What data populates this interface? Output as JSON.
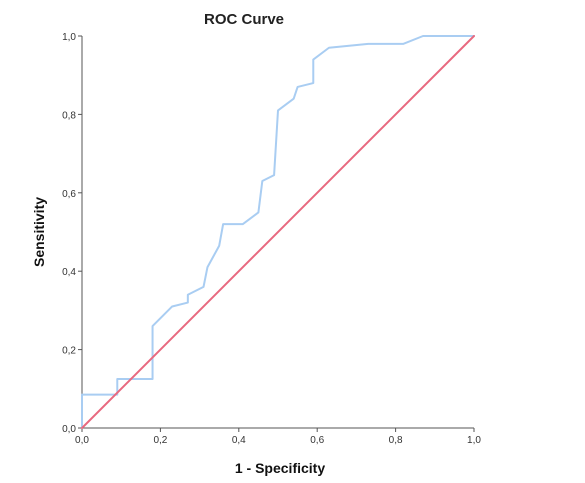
{
  "chart_data": {
    "type": "line",
    "title": "ROC Curve",
    "xlabel": "1 - Specificity",
    "ylabel": "Sensitivity",
    "xlim": [
      0,
      1
    ],
    "ylim": [
      0,
      1
    ],
    "x_ticks": [
      "0,0",
      "0,2",
      "0,4",
      "0,6",
      "0,8",
      "1,0"
    ],
    "y_ticks": [
      "0,0",
      "0,2",
      "0,4",
      "0,6",
      "0,8",
      "1,0"
    ],
    "grid": false,
    "legend": "none",
    "series": [
      {
        "color": "#a9cdf2",
        "points": [
          [
            0.0,
            0.0
          ],
          [
            0.0,
            0.085
          ],
          [
            0.09,
            0.085
          ],
          [
            0.09,
            0.125
          ],
          [
            0.18,
            0.125
          ],
          [
            0.18,
            0.26
          ],
          [
            0.23,
            0.31
          ],
          [
            0.27,
            0.32
          ],
          [
            0.27,
            0.34
          ],
          [
            0.31,
            0.36
          ],
          [
            0.32,
            0.41
          ],
          [
            0.35,
            0.465
          ],
          [
            0.36,
            0.52
          ],
          [
            0.41,
            0.52
          ],
          [
            0.45,
            0.55
          ],
          [
            0.46,
            0.63
          ],
          [
            0.49,
            0.645
          ],
          [
            0.5,
            0.81
          ],
          [
            0.54,
            0.84
          ],
          [
            0.55,
            0.87
          ],
          [
            0.59,
            0.88
          ],
          [
            0.59,
            0.94
          ],
          [
            0.63,
            0.97
          ],
          [
            0.73,
            0.98
          ],
          [
            0.82,
            0.98
          ],
          [
            0.87,
            1.0
          ],
          [
            1.0,
            1.0
          ]
        ]
      },
      {
        "color": "#e8697f",
        "points": [
          [
            0.0,
            0.0
          ],
          [
            1.0,
            1.0
          ]
        ]
      }
    ]
  }
}
